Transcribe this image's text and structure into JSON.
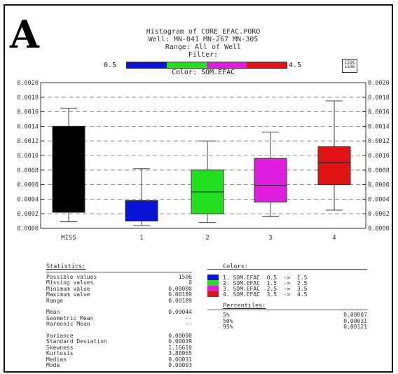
{
  "panel_letter": "A",
  "header": {
    "title": "Histogram of CORE_EFAC.PORO",
    "well": "Well:  MN-041  MN-267  MN-305",
    "range": "Range:  All of Well",
    "filter": "Filter:"
  },
  "legend": {
    "min": "0.5",
    "max": "4.5",
    "title": "Color: SOM.EFAC",
    "colors": [
      "#0a14d6",
      "#22e01e",
      "#e01ee0",
      "#e01414"
    ],
    "count": "1506"
  },
  "chart_data": {
    "type": "boxplot",
    "categories": [
      "MISS",
      "1",
      "2",
      "3",
      "4"
    ],
    "colors": [
      "#000000",
      "#0a14d6",
      "#22e01e",
      "#e01ee0",
      "#e01414"
    ],
    "boxes": [
      {
        "category": "MISS",
        "whisker_low": 9e-05,
        "q1": 0.00022,
        "median": 0.0014,
        "q3": 0.0014,
        "whisker_high": 0.00165
      },
      {
        "category": "1",
        "whisker_low": 4e-05,
        "q1": 0.0001,
        "median": 0.00038,
        "q3": 0.00038,
        "whisker_high": 0.00082
      },
      {
        "category": "2",
        "whisker_low": 8e-05,
        "q1": 0.0002,
        "median": 0.0005,
        "q3": 0.0008,
        "whisker_high": 0.0012
      },
      {
        "category": "3",
        "whisker_low": 0.00016,
        "q1": 0.00036,
        "median": 0.00059,
        "q3": 0.00096,
        "whisker_high": 0.00132
      },
      {
        "category": "4",
        "whisker_low": 0.00025,
        "q1": 0.0006,
        "median": 0.0009,
        "q3": 0.00112,
        "whisker_high": 0.00175
      }
    ],
    "ylim": [
      0,
      0.002
    ],
    "yticks": [
      "0.0000",
      "0.0002",
      "0.0004",
      "0.0006",
      "0.0008",
      "0.0010",
      "0.0012",
      "0.0014",
      "0.0016",
      "0.0018",
      "0.0020"
    ],
    "grid": true
  },
  "statistics": {
    "title": "Statistics:",
    "rows": [
      {
        "label": "Possible values",
        "value": "1506"
      },
      {
        "label": "Missing values",
        "value": "0"
      },
      {
        "label": "Minimum value",
        "value": "0.00000"
      },
      {
        "label": "Maximum value",
        "value": "0.00189"
      },
      {
        "label": "Range",
        "value": "0.00189"
      },
      {
        "label": "",
        "value": ""
      },
      {
        "label": "Mean",
        "value": "0.00044"
      },
      {
        "label": "Geometric Mean",
        "value": "--"
      },
      {
        "label": "Harmonic Mean",
        "value": "--"
      },
      {
        "label": "",
        "value": ""
      },
      {
        "label": "Variance",
        "value": "0.00000"
      },
      {
        "label": "Standard Deviation",
        "value": "0.00039"
      },
      {
        "label": "Skewness",
        "value": "1.16610"
      },
      {
        "label": "Kurtosis",
        "value": "3.88965"
      },
      {
        "label": "Median",
        "value": "0.00031"
      },
      {
        "label": "Mode",
        "value": "0.00003"
      }
    ]
  },
  "colors_section": {
    "title": "Colors:",
    "items": [
      {
        "label": "1. SOM.EFAC  0.5  ->  1.5",
        "color": "#0a14d6"
      },
      {
        "label": "2. SOM.EFAC  1.5  ->  2.5",
        "color": "#22e01e"
      },
      {
        "label": "3. SOM.EFAC  2.5  ->  3.5",
        "color": "#e01ee0"
      },
      {
        "label": "4. SOM.EFAC  3.5  ->  4.5",
        "color": "#e01414"
      }
    ]
  },
  "percentiles": {
    "title": "Percentiles:",
    "rows": [
      {
        "label": "5%",
        "value": "0.00007"
      },
      {
        "label": "50%",
        "value": "0.00031"
      },
      {
        "label": "95%",
        "value": "0.00121"
      }
    ]
  }
}
